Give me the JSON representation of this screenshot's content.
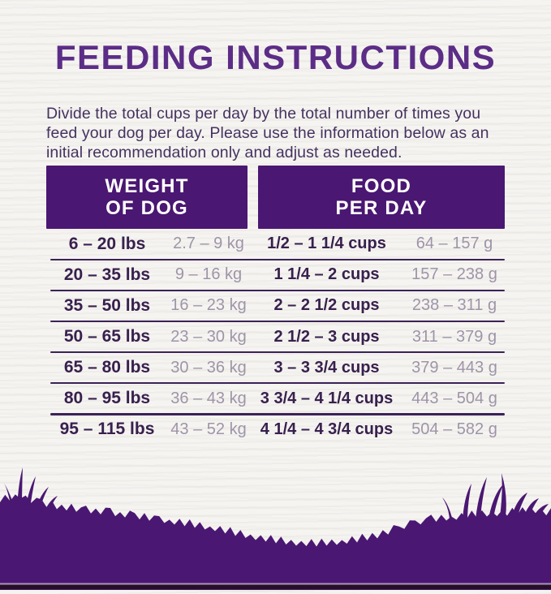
{
  "title": "FEEDING INSTRUCTIONS",
  "intro": {
    "lines": [
      "Divide the total cups per day by the total number of times you",
      "feed your dog per day. Please use the information below as an",
      "initial recommendation only and adjust as needed."
    ]
  },
  "table": {
    "header_weight": {
      "line1": "WEIGHT",
      "line2": "OF DOG"
    },
    "header_food": {
      "line1": "FOOD",
      "line2": "PER DAY"
    },
    "rows": [
      {
        "lbs": "6 – 20 lbs",
        "kg": "2.7 – 9 kg",
        "cups": "1/2 – 1 1/4 cups",
        "grams": "64 – 157 g"
      },
      {
        "lbs": "20 – 35 lbs",
        "kg": "9 – 16 kg",
        "cups": "1 1/4 – 2 cups",
        "grams": "157 – 238 g"
      },
      {
        "lbs": "35 – 50 lbs",
        "kg": "16 – 23 kg",
        "cups": "2 – 2 1/2 cups",
        "grams": "238 – 311 g"
      },
      {
        "lbs": "50 – 65 lbs",
        "kg": "23 – 30 kg",
        "cups": "2 1/2 – 3 cups",
        "grams": "311 – 379 g"
      },
      {
        "lbs": "65 – 80 lbs",
        "kg": "30 – 36 kg",
        "cups": "3 – 3 3/4 cups",
        "grams": "379 – 443 g"
      },
      {
        "lbs": "80 – 95 lbs",
        "kg": "36 – 43 kg",
        "cups": "3 3/4 – 4 1/4 cups",
        "grams": "443 – 504 g"
      },
      {
        "lbs": "95 – 115 lbs",
        "kg": "43 – 52 kg",
        "cups": "4 1/4 – 4 3/4 cups",
        "grams": "504 – 582 g"
      }
    ]
  },
  "colors": {
    "brand_purple": "#4a1772",
    "title_purple": "#5c2d87",
    "body_text": "#453260",
    "row_bold_text": "#38204e",
    "muted_text": "#9e94a8",
    "separator": "#3b2257",
    "background": "#f5f4f1"
  }
}
